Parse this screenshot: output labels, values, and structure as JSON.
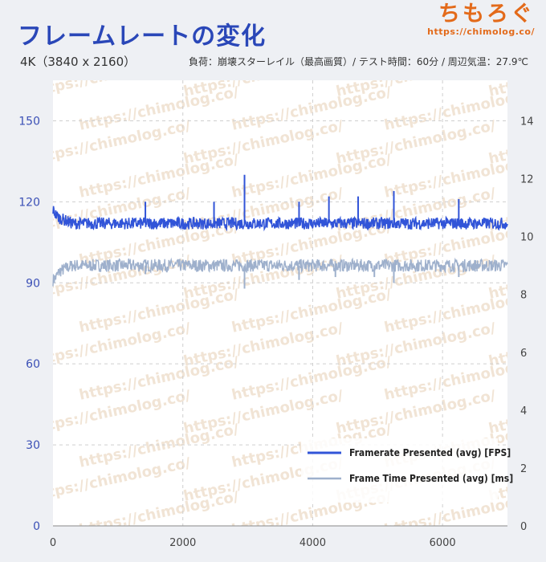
{
  "header": {
    "title": "フレームレートの変化",
    "subtitle_left": "4K（3840 x 2160）",
    "subtitle_right": "負荷：崩壊スターレイル（最高画質）/ テスト時間：60分 / 周辺気温：27.9℃"
  },
  "brand": {
    "logo": "ちもろぐ",
    "url": "https://chimolog.co/"
  },
  "colors": {
    "background": "#eef0f4",
    "plot_background": "#ffffff",
    "fps_line": "#3154d8",
    "frametime_line": "#9eb0cc",
    "title": "#2a47b8",
    "brand": "#e36a1a"
  },
  "chart_data": {
    "type": "line",
    "x": {
      "min": 0,
      "max": 7000,
      "ticks": [
        "0",
        "2000",
        "4000",
        "6000"
      ],
      "tick_values": [
        0,
        2000,
        4000,
        6000
      ]
    },
    "y_left": {
      "min": 0,
      "max": 165,
      "ticks": [
        "0",
        "30",
        "60",
        "90",
        "120",
        "150"
      ],
      "tick_values": [
        0,
        30,
        60,
        90,
        120,
        150
      ]
    },
    "y_right": {
      "min": 0,
      "max": 15.4,
      "ticks": [
        "0",
        "2",
        "4",
        "6",
        "8",
        "10",
        "12",
        "14"
      ],
      "tick_values": [
        0,
        2,
        4,
        6,
        8,
        10,
        12,
        14
      ]
    },
    "grid": "dashed",
    "legend_position": "bottom-right",
    "series": [
      {
        "name": "Framerate Presented (avg) [FPS]",
        "axis": "left",
        "baseline": 112,
        "x": [
          0,
          50,
          100,
          200,
          300,
          500,
          800,
          1100,
          1400,
          1423,
          1800,
          2480,
          2950,
          3000,
          3500,
          3790,
          4250,
          4350,
          4700,
          4950,
          5250,
          5700,
          6250,
          6600,
          7000
        ],
        "values": [
          117,
          115,
          114,
          113,
          112,
          112,
          112,
          112,
          112,
          120,
          112,
          120,
          130,
          112,
          112,
          120,
          122,
          112,
          122,
          112,
          124,
          112,
          121,
          112,
          112
        ]
      },
      {
        "name": "Frame Time Presented (avg) [ms]",
        "axis": "right",
        "baseline": 9.0,
        "x": [
          0,
          50,
          200,
          500,
          1000,
          1423,
          2000,
          2950,
          3000,
          3790,
          4350,
          4950,
          5250,
          5700,
          6250,
          6600,
          7000
        ],
        "values": [
          8.5,
          8.6,
          8.8,
          8.9,
          9.0,
          8.7,
          9.0,
          8.2,
          9.0,
          8.5,
          8.6,
          8.6,
          8.4,
          9.0,
          8.6,
          9.0,
          9.0
        ]
      }
    ]
  },
  "watermark": "https://chimolog.co/"
}
